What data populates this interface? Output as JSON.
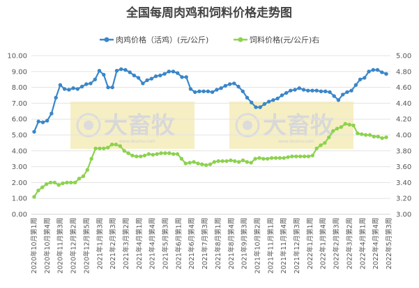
{
  "chart_data": {
    "type": "line",
    "title": "全国每周肉鸡和饲料价格走势图",
    "colors": {
      "chicken": "#3a86c8",
      "feed": "#8cd24e",
      "watermark_bg": "#f6efc4"
    },
    "watermark": {
      "text": "大畜牧",
      "sub": "www.dxumu.com"
    },
    "y_left": {
      "min": 0,
      "max": 10,
      "ticks": [
        "0.00",
        "1.00",
        "2.00",
        "3.00",
        "4.00",
        "5.00",
        "6.00",
        "7.00",
        "8.00",
        "9.00",
        "10.00"
      ]
    },
    "y_right": {
      "min": 3.0,
      "max": 5.0,
      "ticks": [
        "3.00",
        "3.20",
        "3.40",
        "3.60",
        "3.80",
        "4.00",
        "4.20",
        "4.40",
        "4.60",
        "4.80",
        "5.00"
      ]
    },
    "x_tick_labels": [
      "2020年10月第1周",
      "2020年10月第4周",
      "2020年11月第3周",
      "2020年12月第2周",
      "2020年12月第5周",
      "2021年1月第3周",
      "2021年2月第3周",
      "2021年3月第2周",
      "2021年4月第1周",
      "2021年4月第4周",
      "2021年5月第3周",
      "2021年6月第1周",
      "2021年6月第4周",
      "2021年7月第3周",
      "2021年8月第1周",
      "2021年8月第4周",
      "2021年9月第3周",
      "2021年10月第2周",
      "2021年11月第1周",
      "2021年11月第4周",
      "2021年12月第3周",
      "2022年1月第1周",
      "2022年1月第4周",
      "2022年2月第3周",
      "2022年3月第2周",
      "2022年4月第1周",
      "2022年4月第4周",
      "2022年5月第3周"
    ],
    "series": [
      {
        "name": "肉鸡价格（活鸡）(元/公斤)",
        "axis": "left",
        "values": [
          5.2,
          5.85,
          5.8,
          5.9,
          6.35,
          7.35,
          8.15,
          7.9,
          7.85,
          7.95,
          7.9,
          8.05,
          8.2,
          8.25,
          8.5,
          9.05,
          8.8,
          8.0,
          8.0,
          9.05,
          9.15,
          9.1,
          8.95,
          8.75,
          8.6,
          8.25,
          8.45,
          8.55,
          8.7,
          8.75,
          8.85,
          9.0,
          9.0,
          8.9,
          8.65,
          8.65,
          7.9,
          7.7,
          7.75,
          7.75,
          7.75,
          7.7,
          7.85,
          7.95,
          8.1,
          8.2,
          8.25,
          8.05,
          7.75,
          7.35,
          7.05,
          6.75,
          6.75,
          6.95,
          7.1,
          7.2,
          7.3,
          7.5,
          7.65,
          7.8,
          7.85,
          7.95,
          7.85,
          7.8,
          7.8,
          7.8,
          7.75,
          7.75,
          7.7,
          7.45,
          7.2,
          7.55,
          7.7,
          7.8,
          8.15,
          8.5,
          8.6,
          9.0,
          9.1,
          9.1,
          8.95,
          8.85
        ]
      },
      {
        "name": "饲料价格(元/公斤)右",
        "axis": "right",
        "values": [
          3.22,
          3.3,
          3.34,
          3.38,
          3.4,
          3.4,
          3.37,
          3.39,
          3.4,
          3.4,
          3.4,
          3.45,
          3.48,
          3.56,
          3.7,
          3.83,
          3.83,
          3.83,
          3.84,
          3.88,
          3.88,
          3.86,
          3.8,
          3.77,
          3.74,
          3.73,
          3.73,
          3.74,
          3.76,
          3.75,
          3.76,
          3.77,
          3.77,
          3.77,
          3.76,
          3.76,
          3.7,
          3.64,
          3.65,
          3.66,
          3.64,
          3.63,
          3.62,
          3.63,
          3.66,
          3.67,
          3.67,
          3.67,
          3.68,
          3.67,
          3.66,
          3.68,
          3.66,
          3.65,
          3.7,
          3.71,
          3.7,
          3.7,
          3.71,
          3.71,
          3.71,
          3.71,
          3.72,
          3.73,
          3.73,
          3.73,
          3.73,
          3.73,
          3.74,
          3.83,
          3.87,
          3.9,
          3.97,
          4.05,
          4.08,
          4.1,
          4.14,
          4.13,
          4.12,
          4.02,
          4.01,
          4.0,
          4.0,
          3.98,
          3.98,
          3.96,
          3.97
        ]
      }
    ],
    "grid": true,
    "legend_position": "top"
  }
}
